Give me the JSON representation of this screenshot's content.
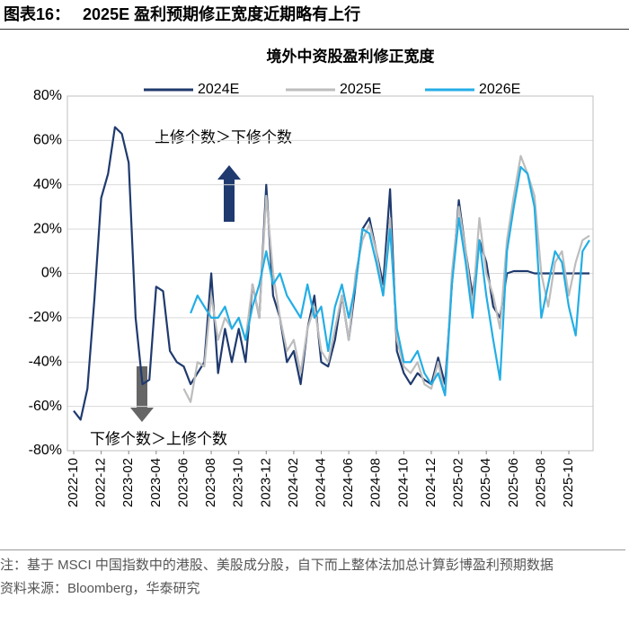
{
  "header": {
    "label": "图表16：",
    "title": "2025E 盈利预期修正宽度近期略有上行"
  },
  "chart_data": {
    "type": "line",
    "title": "境外中资股盈利修正宽度",
    "categories": [
      "2022-10",
      null,
      null,
      null,
      "2022-12",
      null,
      null,
      null,
      "2023-02",
      null,
      null,
      null,
      "2023-04",
      null,
      null,
      null,
      "2023-06",
      null,
      null,
      null,
      "2023-08",
      null,
      null,
      null,
      "2023-10",
      null,
      null,
      null,
      "2023-12",
      null,
      null,
      null,
      "2024-02",
      null,
      null,
      null,
      "2024-04",
      null,
      null,
      null,
      "2024-06",
      null,
      null,
      null,
      "2024-08",
      null,
      null,
      null,
      "2024-10",
      null,
      null,
      null,
      "2024-12",
      null,
      null,
      null,
      "2025-02",
      null,
      null,
      null,
      "2025-04",
      null,
      null,
      null,
      "2025-06",
      null,
      null,
      null,
      "2025-08",
      null,
      null,
      null,
      "2025-10",
      null,
      null,
      null
    ],
    "series": [
      {
        "name": "2024E",
        "color": "#1f3a6e",
        "values": [
          -62,
          -66,
          -52,
          -12,
          34,
          45,
          66,
          63,
          50,
          -20,
          -50,
          -48,
          -6,
          -8,
          -35,
          -40,
          -42,
          -50,
          -45,
          -40,
          0,
          -45,
          -25,
          -40,
          -25,
          -40,
          -5,
          -20,
          40,
          -10,
          -20,
          -40,
          -35,
          -50,
          -25,
          -10,
          -40,
          -42,
          -30,
          -10,
          -30,
          -5,
          20,
          25,
          10,
          -5,
          38,
          -35,
          -45,
          -50,
          -45,
          -48,
          -50,
          -38,
          -50,
          -5,
          33,
          10,
          -10,
          15,
          5,
          -15,
          -20,
          0,
          1,
          1,
          1,
          0,
          0,
          0,
          0,
          0,
          0,
          0,
          0,
          0
        ]
      },
      {
        "name": "2025E",
        "color": "#bdbdbd",
        "values": [
          null,
          null,
          null,
          null,
          null,
          null,
          null,
          null,
          null,
          null,
          null,
          null,
          null,
          null,
          null,
          null,
          -52,
          -58,
          -40,
          -42,
          -10,
          -30,
          -20,
          -25,
          -20,
          -30,
          -5,
          -20,
          35,
          0,
          -20,
          -35,
          -30,
          -45,
          -25,
          -15,
          -35,
          -40,
          -25,
          -10,
          -30,
          0,
          15,
          22,
          10,
          -10,
          25,
          -30,
          -42,
          -45,
          -40,
          -50,
          -52,
          -40,
          -55,
          0,
          30,
          10,
          -15,
          25,
          0,
          -10,
          -25,
          15,
          35,
          53,
          45,
          35,
          0,
          -15,
          5,
          10,
          -10,
          5,
          15,
          17
        ]
      },
      {
        "name": "2026E",
        "color": "#23aee5",
        "values": [
          null,
          null,
          null,
          null,
          null,
          null,
          null,
          null,
          null,
          null,
          null,
          null,
          null,
          null,
          null,
          null,
          null,
          -18,
          -10,
          -15,
          -20,
          -20,
          -15,
          -25,
          -20,
          -30,
          -15,
          -5,
          10,
          -5,
          0,
          -10,
          -15,
          -20,
          -5,
          -20,
          -15,
          -35,
          -15,
          -5,
          -20,
          -5,
          20,
          18,
          5,
          -10,
          20,
          -25,
          -40,
          -40,
          -35,
          -45,
          -50,
          -45,
          -55,
          -5,
          25,
          5,
          -20,
          15,
          -10,
          -30,
          -48,
          10,
          30,
          48,
          45,
          30,
          -20,
          -5,
          10,
          5,
          -15,
          -28,
          10,
          15
        ]
      }
    ],
    "ylim": [
      -80,
      80
    ],
    "yticks": [
      {
        "value": -80,
        "label": "-80%"
      },
      {
        "value": -60,
        "label": "-60%"
      },
      {
        "value": -40,
        "label": "-40%"
      },
      {
        "value": -20,
        "label": "-20%"
      },
      {
        "value": 0,
        "label": "0%"
      },
      {
        "value": 20,
        "label": "20%"
      },
      {
        "value": 40,
        "label": "40%"
      },
      {
        "value": 60,
        "label": "60%"
      },
      {
        "value": 80,
        "label": "80%"
      }
    ],
    "grid": true,
    "legend": "top",
    "annotations": [
      "上修个数＞下修个数",
      "下修个数＞上修个数"
    ]
  },
  "footer": {
    "note": "注：基于 MSCI 中国指数中的港股、美股成分股，自下而上整体法加总计算彭博盈利预期数据",
    "source": "资料来源：Bloomberg，华泰研究"
  }
}
